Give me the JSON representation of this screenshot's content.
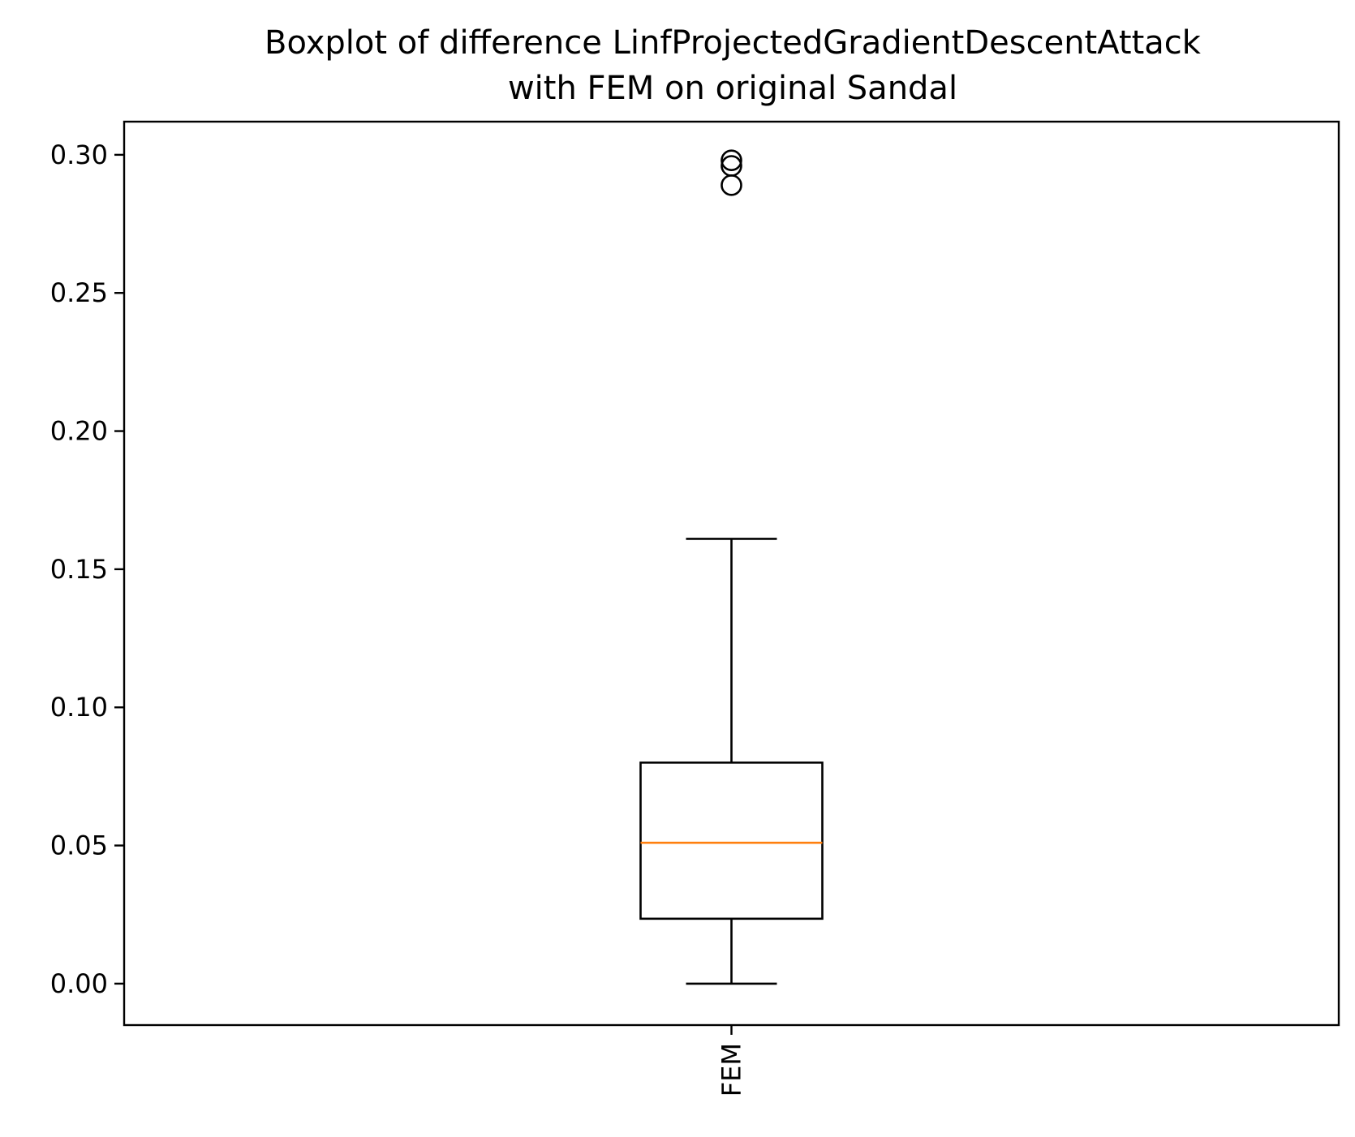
{
  "chart_data": {
    "type": "box",
    "title": [
      "Boxplot of difference LinfProjectedGradientDescentAttack",
      "with FEM on original Sandal"
    ],
    "xlabel": "",
    "ylabel": "",
    "categories": [
      "FEM"
    ],
    "ylim": [
      -0.015,
      0.312
    ],
    "yticks": [
      0.0,
      0.05,
      0.1,
      0.15,
      0.2,
      0.25,
      0.3
    ],
    "ytick_labels": [
      "0.00",
      "0.05",
      "0.10",
      "0.15",
      "0.20",
      "0.25",
      "0.30"
    ],
    "grid": false,
    "boxes": [
      {
        "category": "FEM",
        "whisker_low": 0.0,
        "q1": 0.0235,
        "median": 0.051,
        "q3": 0.08,
        "whisker_high": 0.161,
        "outliers": [
          0.298,
          0.296,
          0.289
        ]
      }
    ],
    "colors": {
      "box": "#000000",
      "median": "#ff7f0e",
      "outlier": "#000000"
    }
  }
}
